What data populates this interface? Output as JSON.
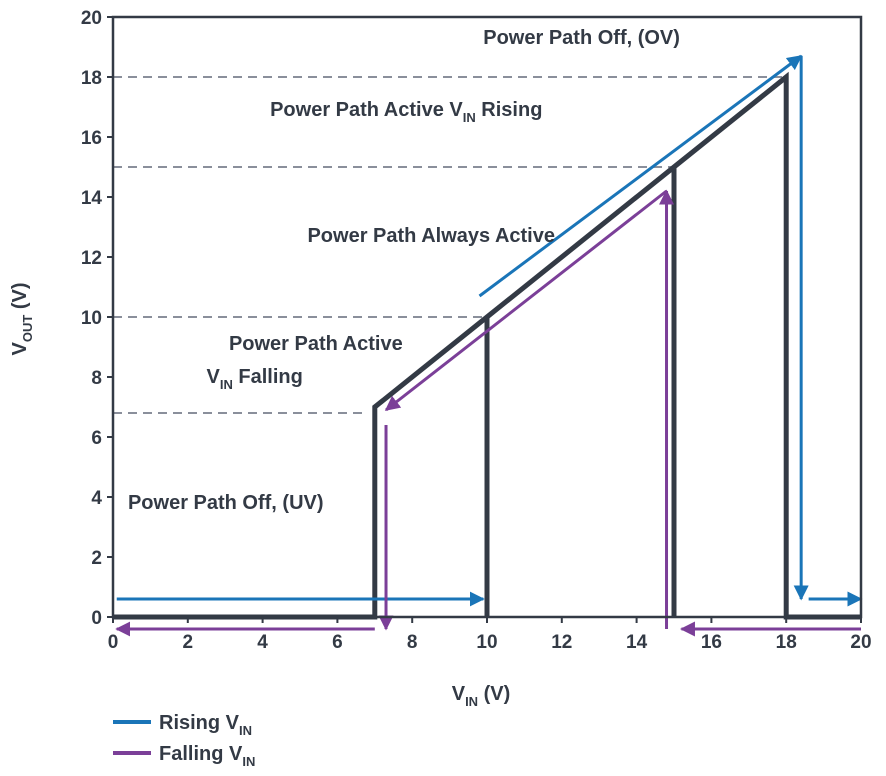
{
  "chart_data": {
    "type": "line",
    "xlabel": {
      "main": "V",
      "sub": "IN",
      "unit": " (V)"
    },
    "ylabel": {
      "main": "V",
      "sub": "OUT",
      "unit": " (V)"
    },
    "xlim": [
      0,
      20
    ],
    "ylim": [
      0,
      20
    ],
    "x_ticks": [
      0,
      2,
      4,
      6,
      8,
      10,
      12,
      14,
      16,
      18,
      20
    ],
    "y_ticks": [
      0,
      2,
      4,
      6,
      8,
      10,
      12,
      14,
      16,
      18,
      20
    ],
    "grid": false,
    "threshold_lines": [
      6.8,
      10,
      15,
      18
    ],
    "outline": [
      [
        0,
        0
      ],
      [
        7,
        0
      ],
      [
        7,
        7
      ],
      [
        10,
        10
      ],
      [
        10,
        0
      ],
      [
        10,
        10
      ],
      [
        15,
        15
      ],
      [
        15,
        0
      ],
      [
        15,
        15
      ],
      [
        18,
        18
      ],
      [
        18,
        0
      ],
      [
        20,
        0
      ]
    ],
    "regions": [
      {
        "text": "Power Path Off, (OV)",
        "x": 9.9,
        "y": 19.1
      },
      {
        "text": "Power Path Active V",
        "sub": "IN",
        "after": " Rising",
        "x": 4.2,
        "y": 16.7
      },
      {
        "text": "Power Path Always Active",
        "x": 5.2,
        "y": 12.5
      },
      {
        "text": "Power Path Active",
        "x": 3.1,
        "y": 8.9
      },
      {
        "text": "V",
        "sub": "IN",
        "after": " Falling",
        "x": 2.5,
        "y": 7.8
      },
      {
        "text": "Power Path Off, (UV)",
        "x": 0.4,
        "y": 3.6
      }
    ],
    "series": [
      {
        "name": "Rising",
        "color": "#1a75b8",
        "paths": [
          [
            [
              0.1,
              0.6
            ],
            [
              9.9,
              0.6
            ]
          ],
          [
            [
              9.8,
              10.7
            ],
            [
              18.4,
              18.7
            ]
          ],
          [
            [
              18.4,
              18.7
            ],
            [
              18.4,
              0.6
            ]
          ],
          [
            [
              18.6,
              0.6
            ],
            [
              20.0,
              0.6
            ]
          ]
        ]
      },
      {
        "name": "Falling",
        "color": "#7b3f98",
        "paths": [
          [
            [
              20.0,
              -0.4
            ],
            [
              15.2,
              -0.4
            ]
          ],
          [
            [
              14.8,
              -0.4
            ],
            [
              14.8,
              14.2
            ]
          ],
          [
            [
              14.8,
              14.2
            ],
            [
              7.3,
              6.9
            ]
          ],
          [
            [
              7.3,
              6.4
            ],
            [
              7.3,
              -0.4
            ]
          ],
          [
            [
              7.0,
              -0.4
            ],
            [
              0.1,
              -0.4
            ]
          ]
        ]
      }
    ],
    "legend": {
      "placement": "bottom-left",
      "items": [
        {
          "label": "Rising V",
          "sub": "IN",
          "color": "#1a75b8"
        },
        {
          "label": "Falling V",
          "sub": "IN",
          "color": "#7b3f98"
        }
      ]
    }
  }
}
